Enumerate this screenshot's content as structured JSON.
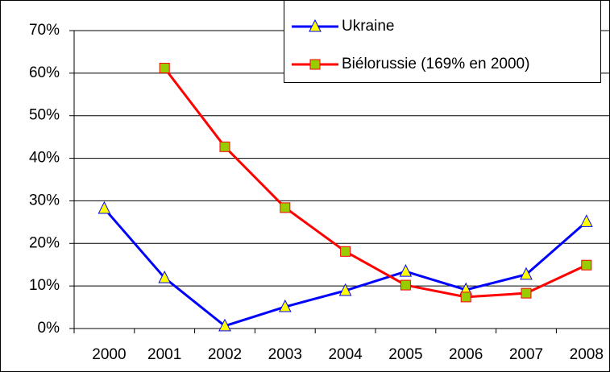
{
  "chart_data": {
    "type": "line",
    "categories": [
      "2000",
      "2001",
      "2002",
      "2003",
      "2004",
      "2005",
      "2006",
      "2007",
      "2008"
    ],
    "series": [
      {
        "name": "Ukraine",
        "color": "#0000ff",
        "marker": "triangle",
        "marker_color": "#ffff00",
        "values": [
          28.2,
          11.9,
          0.6,
          5.1,
          8.9,
          13.4,
          9.1,
          12.7,
          25.1
        ]
      },
      {
        "name": "Biélorussie (169% en 2000)",
        "color": "#ff0000",
        "marker": "square",
        "marker_color": "#99cc00",
        "values": [
          null,
          61.2,
          42.7,
          28.4,
          18.1,
          10.2,
          7.4,
          8.3,
          14.9
        ]
      }
    ],
    "ylim": [
      0,
      70
    ],
    "yticks": [
      {
        "value": 0,
        "label": "0%"
      },
      {
        "value": 10,
        "label": "10%"
      },
      {
        "value": 20,
        "label": "20%"
      },
      {
        "value": 30,
        "label": "30%"
      },
      {
        "value": 40,
        "label": "40%"
      },
      {
        "value": 50,
        "label": "50%"
      },
      {
        "value": 60,
        "label": "60%"
      },
      {
        "value": 70,
        "label": "70%"
      }
    ],
    "grid": true,
    "legend": "top-right"
  }
}
